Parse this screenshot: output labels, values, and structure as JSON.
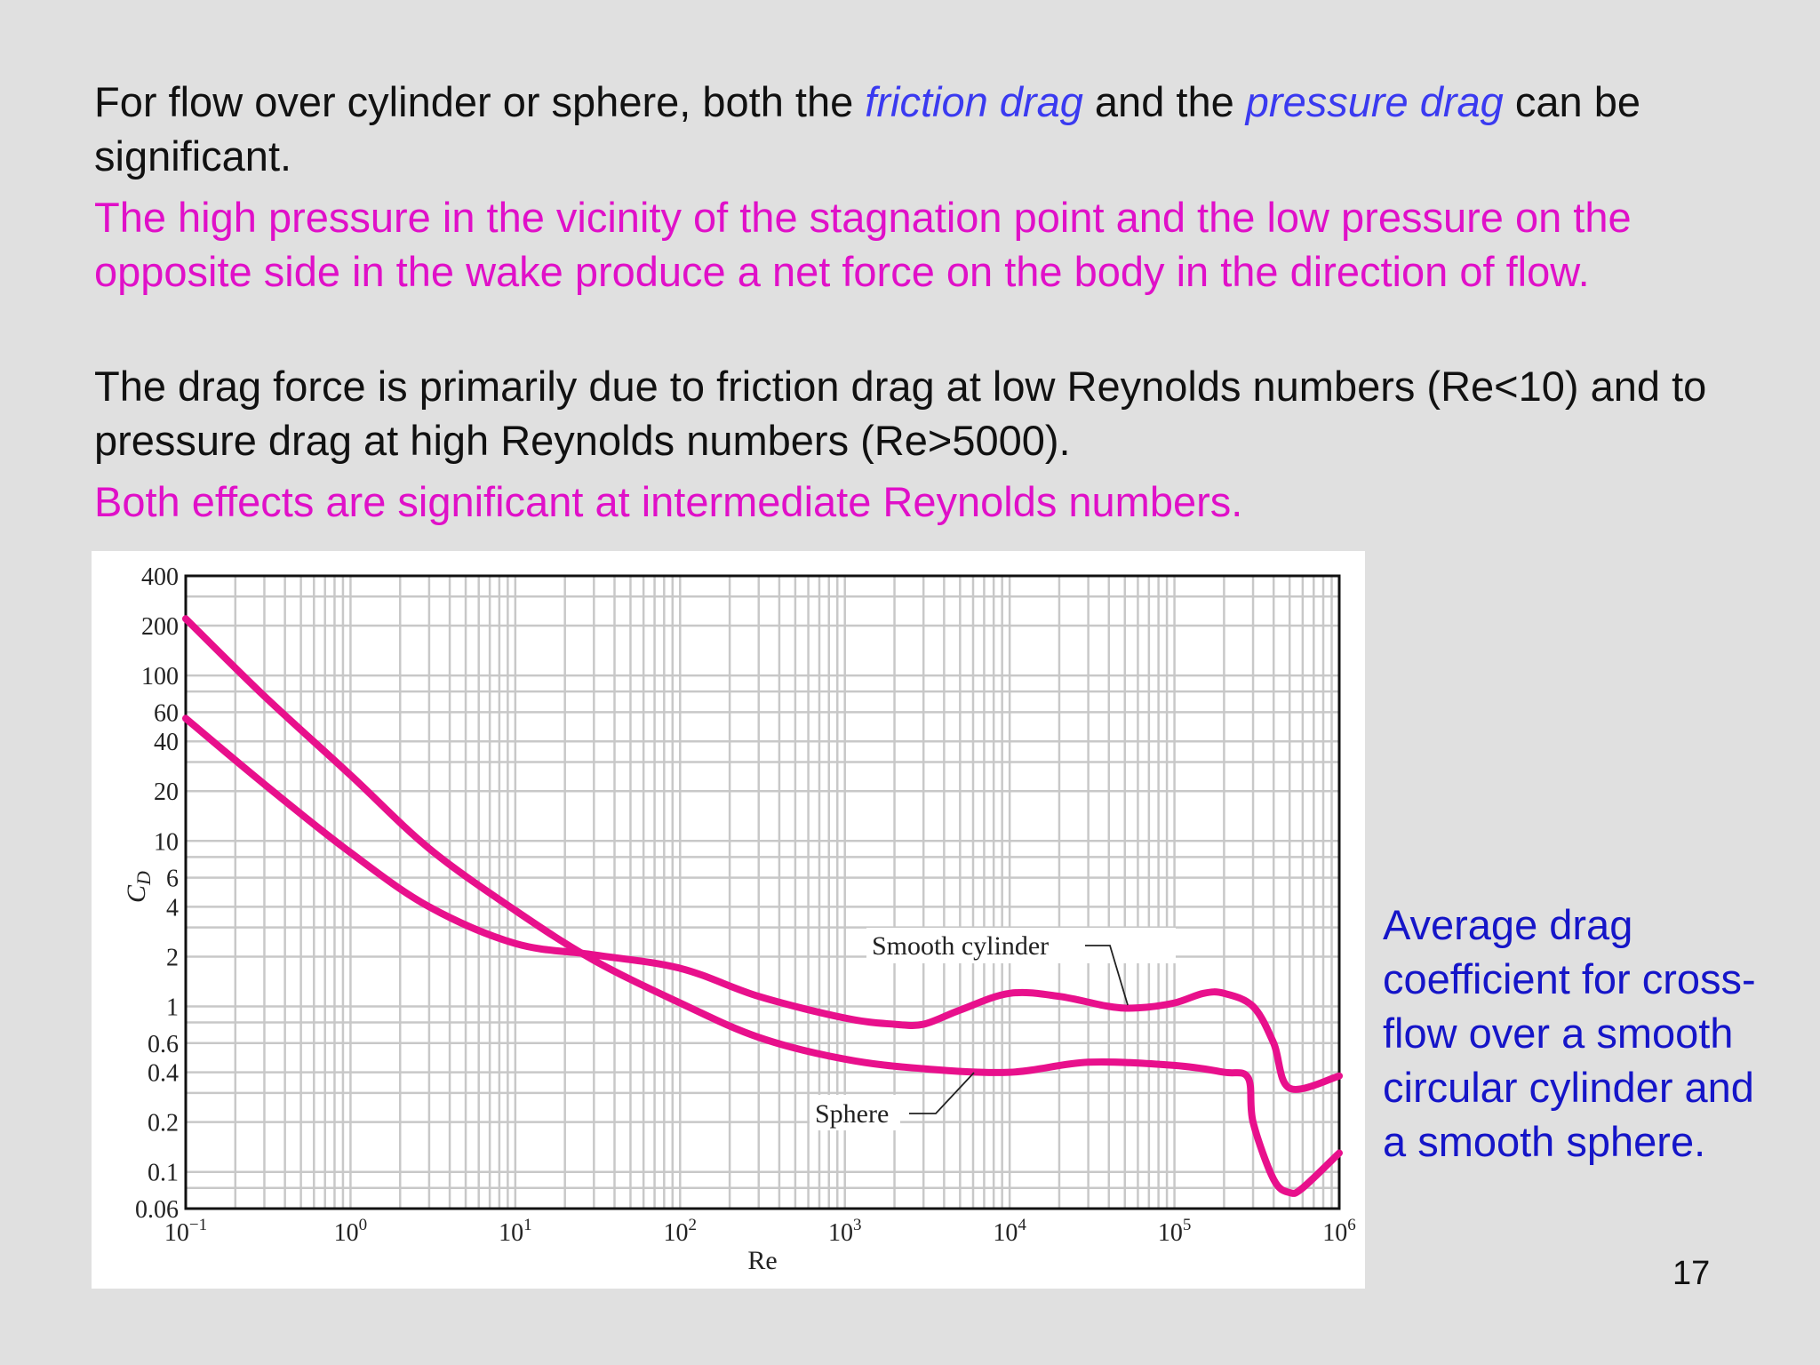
{
  "slide": {
    "p1": {
      "a": "For flow over cylinder or sphere, both the ",
      "em1": "friction drag",
      "b": " and the ",
      "em2": "pressure drag",
      "c": " can be significant."
    },
    "p2": "The high pressure in the vicinity of the stagnation point and the low pressure on the opposite side in the wake produce a net force on the body in the direction of flow.",
    "p3": "The drag force is primarily due to friction drag at low Reynolds numbers (Re<10) and to pressure drag at high Reynolds numbers (Re>5000).",
    "p4": "Both effects are significant at intermediate Reynolds numbers.",
    "caption": "Average drag coefficient for cross-flow over a smooth circular cylinder and a smooth sphere.",
    "page_number": "17"
  },
  "colors": {
    "curve": "#e8108c",
    "emphasis": "#3a3af0",
    "magenta_text": "#e010c8",
    "caption": "#1515c8"
  },
  "chart_data": {
    "type": "line",
    "xscale": "log",
    "yscale": "log",
    "xlabel": "Re",
    "ylabel": "C_D",
    "xlim": [
      0.1,
      1000000
    ],
    "ylim": [
      0.06,
      400
    ],
    "grid": true,
    "x_ticks": [
      {
        "base": "10",
        "exp": "−1",
        "value": 0.1
      },
      {
        "base": "10",
        "exp": "0",
        "value": 1
      },
      {
        "base": "10",
        "exp": "1",
        "value": 10
      },
      {
        "base": "10",
        "exp": "2",
        "value": 100
      },
      {
        "base": "10",
        "exp": "3",
        "value": 1000
      },
      {
        "base": "10",
        "exp": "4",
        "value": 10000
      },
      {
        "base": "10",
        "exp": "5",
        "value": 100000
      },
      {
        "base": "10",
        "exp": "6",
        "value": 1000000
      }
    ],
    "y_ticks": [
      {
        "label": "400",
        "value": 400
      },
      {
        "label": "200",
        "value": 200
      },
      {
        "label": "100",
        "value": 100
      },
      {
        "label": "60",
        "value": 60
      },
      {
        "label": "40",
        "value": 40
      },
      {
        "label": "20",
        "value": 20
      },
      {
        "label": "10",
        "value": 10
      },
      {
        "label": "6",
        "value": 6
      },
      {
        "label": "4",
        "value": 4
      },
      {
        "label": "2",
        "value": 2
      },
      {
        "label": "1",
        "value": 1
      },
      {
        "label": "0.6",
        "value": 0.6
      },
      {
        "label": "0.4",
        "value": 0.4
      },
      {
        "label": "0.2",
        "value": 0.2
      },
      {
        "label": "0.1",
        "value": 0.1
      },
      {
        "label": "0.06",
        "value": 0.06
      }
    ],
    "series": [
      {
        "name": "Smooth cylinder",
        "x": [
          0.1,
          0.3,
          1,
          3,
          10,
          30,
          100,
          300,
          1000,
          2000,
          3000,
          5000,
          10000,
          20000,
          40000,
          60000,
          100000,
          150000,
          200000,
          300000,
          400000,
          500000,
          1000000
        ],
        "y": [
          55,
          22,
          8.5,
          4,
          2.4,
          2.05,
          1.7,
          1.15,
          0.85,
          0.78,
          0.78,
          0.95,
          1.2,
          1.15,
          1.0,
          0.98,
          1.05,
          1.2,
          1.2,
          1.0,
          0.6,
          0.32,
          0.38
        ]
      },
      {
        "name": "Sphere",
        "x": [
          0.1,
          0.3,
          1,
          3,
          10,
          30,
          100,
          300,
          1000,
          3000,
          10000,
          30000,
          100000,
          200000,
          280000,
          300000,
          400000,
          500000,
          600000,
          1000000
        ],
        "y": [
          220,
          75,
          25,
          9,
          3.8,
          1.9,
          1.05,
          0.65,
          0.48,
          0.42,
          0.4,
          0.46,
          0.44,
          0.4,
          0.37,
          0.2,
          0.09,
          0.075,
          0.08,
          0.13
        ]
      }
    ]
  }
}
